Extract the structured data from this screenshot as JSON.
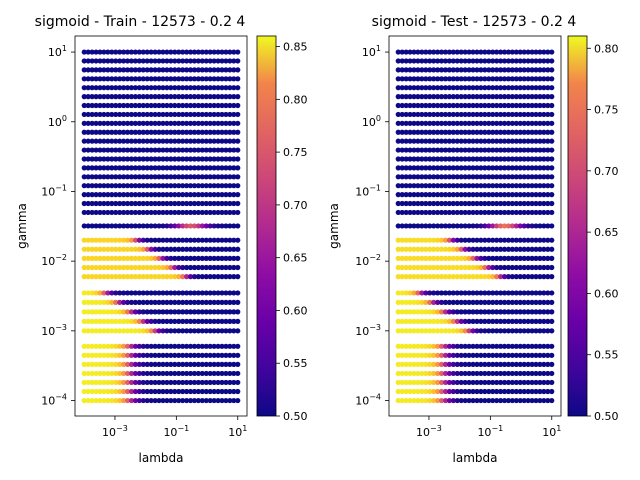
{
  "chart_data": [
    {
      "type": "scatter",
      "title": "sigmoid - Train - 12573 - 0.2 4",
      "xlabel": "lambda",
      "ylabel": "gamma",
      "xscale": "log",
      "yscale": "log",
      "xlim": [
        5e-05,
        20
      ],
      "ylim": [
        6e-05,
        17
      ],
      "xticks": [
        {
          "value": 0.001,
          "base": "10",
          "exp": "−3"
        },
        {
          "value": 0.1,
          "base": "10",
          "exp": "−1"
        },
        {
          "value": 10,
          "base": "10",
          "exp": "1"
        }
      ],
      "yticks": [
        {
          "value": 0.0001,
          "base": "10",
          "exp": "−4"
        },
        {
          "value": 0.001,
          "base": "10",
          "exp": "−3"
        },
        {
          "value": 0.01,
          "base": "10",
          "exp": "−2"
        },
        {
          "value": 0.1,
          "base": "10",
          "exp": "−1"
        },
        {
          "value": 1,
          "base": "10",
          "exp": "0"
        },
        {
          "value": 10,
          "base": "10",
          "exp": "1"
        }
      ],
      "grid": false,
      "colormap": "plasma",
      "color_range": [
        0.5,
        0.86
      ],
      "colorbar_ticks": [
        "0.50",
        "0.55",
        "0.60",
        "0.65",
        "0.70",
        "0.75",
        "0.80",
        "0.85"
      ],
      "colorbar_tick_values": [
        0.5,
        0.55,
        0.6,
        0.65,
        0.7,
        0.75,
        0.8,
        0.85
      ],
      "lambda_range": [
        0.0001,
        10
      ],
      "gamma_bands": [
        {
          "band": [
            0.0001,
            0.0006
          ],
          "region": "full",
          "left_value": 0.85,
          "edge_lambda": 0.003,
          "edge_width": 0.6,
          "low_value": 0.5
        },
        {
          "band": [
            0.001,
            0.0035
          ],
          "region": "triangle",
          "left_value": 0.85,
          "edge_lambda": 0.02,
          "edge_width": 0.45,
          "low_value": 0.5
        },
        {
          "band": [
            0.006,
            0.02
          ],
          "region": "triangle",
          "left_value": 0.83,
          "edge_lambda": 0.2,
          "edge_width": 0.4,
          "low_value": 0.5
        },
        {
          "band": [
            0.032,
            0.032
          ],
          "region": "peak",
          "left_value": 0.5,
          "peak_lambda": 0.3,
          "peak_value": 0.7,
          "low_value": 0.5
        },
        {
          "band": [
            0.05,
            10
          ],
          "region": "none",
          "left_value": 0.5,
          "low_value": 0.5
        }
      ]
    },
    {
      "type": "scatter",
      "title": "sigmoid - Test - 12573 - 0.2 4",
      "xlabel": "lambda",
      "ylabel": "gamma",
      "xscale": "log",
      "yscale": "log",
      "xlim": [
        5e-05,
        20
      ],
      "ylim": [
        6e-05,
        17
      ],
      "xticks": [
        {
          "value": 0.001,
          "base": "10",
          "exp": "−3"
        },
        {
          "value": 0.1,
          "base": "10",
          "exp": "−1"
        },
        {
          "value": 10,
          "base": "10",
          "exp": "1"
        }
      ],
      "yticks": [
        {
          "value": 0.0001,
          "base": "10",
          "exp": "−4"
        },
        {
          "value": 0.001,
          "base": "10",
          "exp": "−3"
        },
        {
          "value": 0.01,
          "base": "10",
          "exp": "−2"
        },
        {
          "value": 0.1,
          "base": "10",
          "exp": "−1"
        },
        {
          "value": 1,
          "base": "10",
          "exp": "0"
        },
        {
          "value": 10,
          "base": "10",
          "exp": "1"
        }
      ],
      "grid": false,
      "colormap": "plasma",
      "color_range": [
        0.5,
        0.81
      ],
      "colorbar_ticks": [
        "0.50",
        "0.55",
        "0.60",
        "0.65",
        "0.70",
        "0.75",
        "0.80"
      ],
      "colorbar_tick_values": [
        0.5,
        0.55,
        0.6,
        0.65,
        0.7,
        0.75,
        0.8
      ],
      "lambda_range": [
        0.0001,
        10
      ],
      "gamma_bands": [
        {
          "band": [
            0.0001,
            0.0006
          ],
          "region": "full",
          "left_value": 0.8,
          "edge_lambda": 0.003,
          "edge_width": 0.6,
          "low_value": 0.5
        },
        {
          "band": [
            0.001,
            0.0035
          ],
          "region": "triangle",
          "left_value": 0.8,
          "edge_lambda": 0.02,
          "edge_width": 0.45,
          "low_value": 0.5
        },
        {
          "band": [
            0.006,
            0.02
          ],
          "region": "triangle",
          "left_value": 0.79,
          "edge_lambda": 0.2,
          "edge_width": 0.4,
          "low_value": 0.5
        },
        {
          "band": [
            0.032,
            0.032
          ],
          "region": "peak",
          "left_value": 0.5,
          "peak_lambda": 0.3,
          "peak_value": 0.7,
          "low_value": 0.5
        },
        {
          "band": [
            0.05,
            10
          ],
          "region": "none",
          "left_value": 0.5,
          "low_value": 0.5
        }
      ]
    }
  ]
}
